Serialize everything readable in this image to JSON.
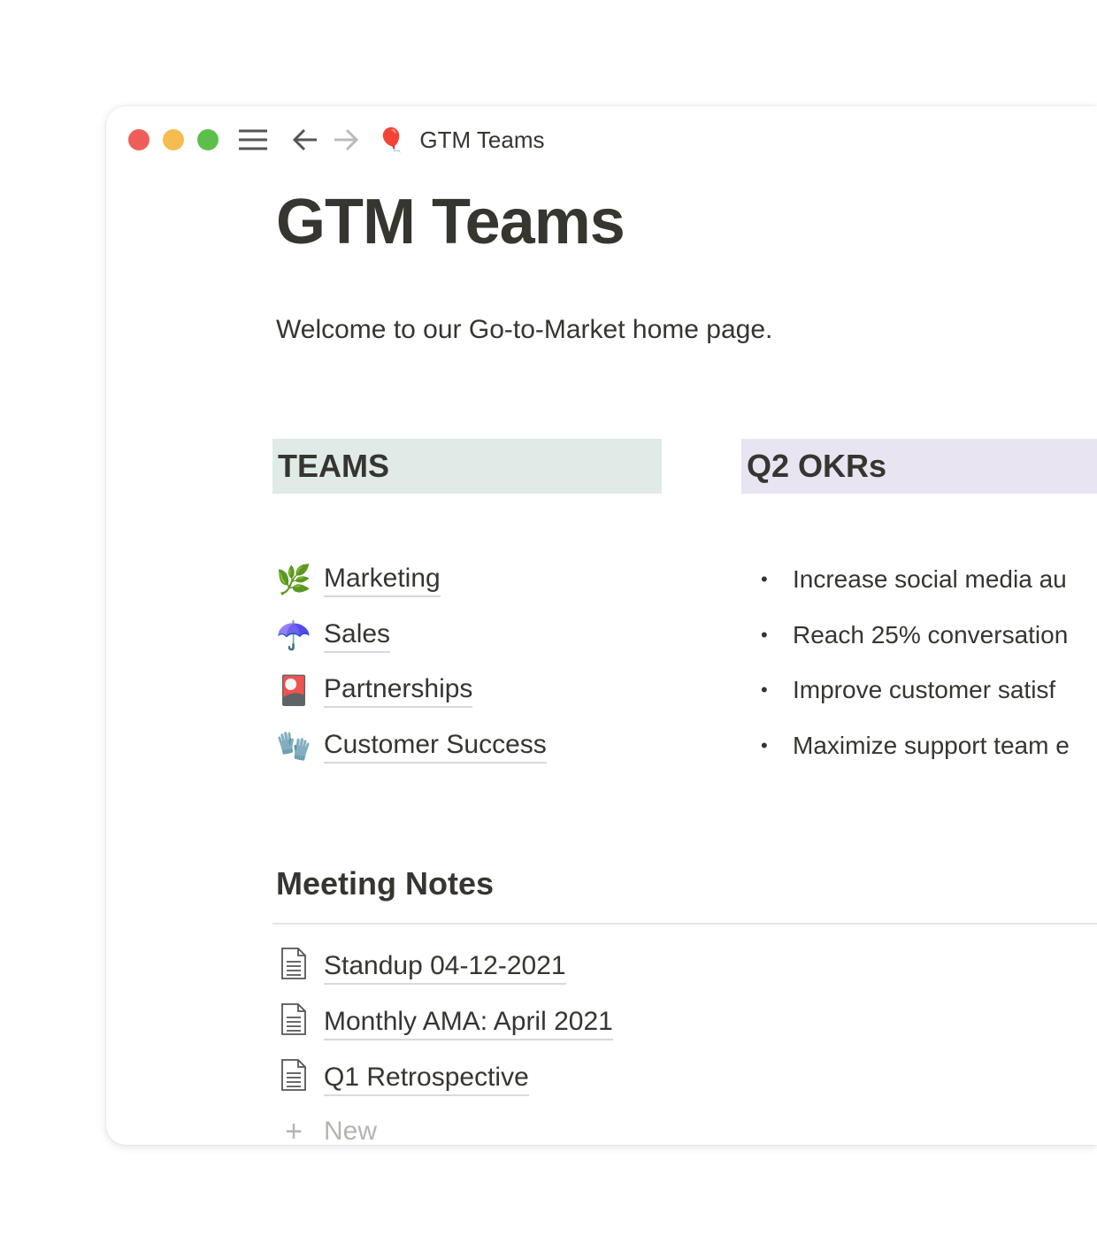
{
  "window": {
    "title": "GTM Teams",
    "title_icon": "🎈",
    "traffic_colors": [
      "#ee5e58",
      "#f5bd4f",
      "#5dbf4b"
    ]
  },
  "page": {
    "title": "GTM Teams",
    "welcome": "Welcome to our Go-to-Market home page."
  },
  "teams": {
    "header": "TEAMS",
    "header_bg": "#e0ebe8",
    "items": [
      {
        "icon": "🌿",
        "label": "Marketing"
      },
      {
        "icon": "☂️",
        "label": "Sales"
      },
      {
        "icon": "🎴",
        "label": "Partnerships"
      },
      {
        "icon": "🧤",
        "label": "Customer Success"
      }
    ]
  },
  "okrs": {
    "header": "Q2 OKRs",
    "header_bg": "#e8e4f1",
    "items": [
      "Increase social media au",
      "Reach 25% conversation",
      "Improve customer satisf",
      "Maximize support team e"
    ]
  },
  "meetings": {
    "header": "Meeting Notes",
    "items": [
      "Standup 04-12-2021",
      "Monthly AMA: April 2021",
      "Q1 Retrospective"
    ],
    "new_label": "New"
  }
}
